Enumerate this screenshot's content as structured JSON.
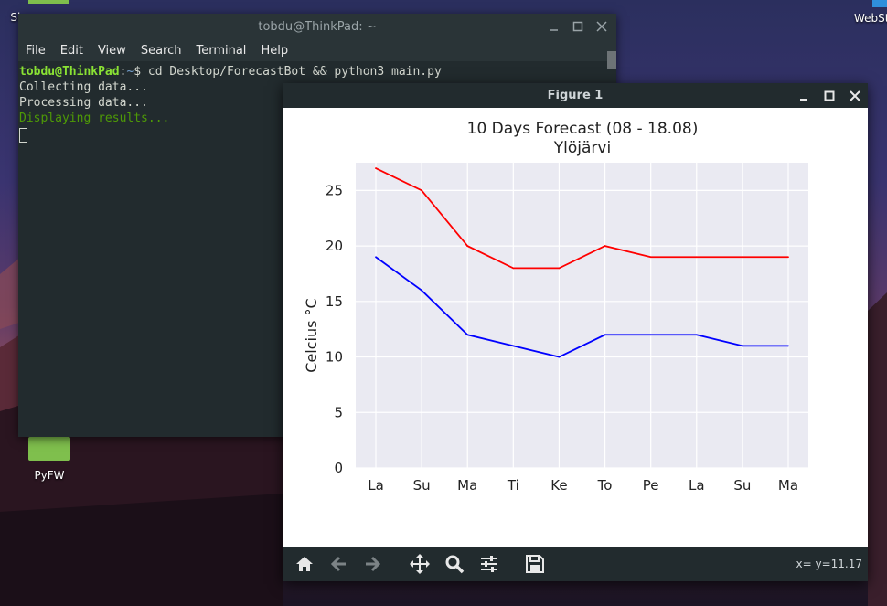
{
  "desktop": {
    "icons": [
      {
        "label": "Sh"
      },
      {
        "label": "PyFW"
      },
      {
        "label": "WebSt"
      }
    ]
  },
  "terminal": {
    "title": "tobdu@ThinkPad: ~",
    "menu": [
      "File",
      "Edit",
      "View",
      "Search",
      "Terminal",
      "Help"
    ],
    "prompt_user": "tobdu@ThinkPad",
    "prompt_sep": ":",
    "prompt_path": "~",
    "prompt_symbol": "$",
    "command": " cd Desktop/ForecastBot && python3 main.py",
    "output": [
      "Collecting data...",
      "Processing data..."
    ],
    "output_highlight": "Displaying results..."
  },
  "figure_window": {
    "title": "Figure 1",
    "coord_readout": "x= y=11.17",
    "toolbar": [
      "home-icon",
      "back-arrow-icon",
      "forward-arrow-icon",
      "pan-icon",
      "zoom-icon",
      "configure-subplots-icon",
      "save-icon"
    ]
  },
  "chart_data": {
    "type": "line",
    "title": "10 Days Forecast (08 - 18.08)",
    "subtitle": "Ylöjärvi",
    "xlabel": "",
    "ylabel": "Celcius °C",
    "categories": [
      "La",
      "Su",
      "Ma",
      "Ti",
      "Ke",
      "To",
      "Pe",
      "La",
      "Su",
      "Ma"
    ],
    "ylim": [
      0,
      27.5
    ],
    "yticks": [
      0,
      5,
      10,
      15,
      20,
      25
    ],
    "grid": true,
    "background": "#eaeaf2",
    "series": [
      {
        "color": "#ff0000",
        "values": [
          27,
          25,
          20,
          18,
          18,
          20,
          19,
          19,
          19,
          19
        ]
      },
      {
        "color": "#0000ff",
        "values": [
          19,
          16,
          12,
          11,
          10,
          12,
          12,
          12,
          11,
          11
        ]
      }
    ]
  }
}
